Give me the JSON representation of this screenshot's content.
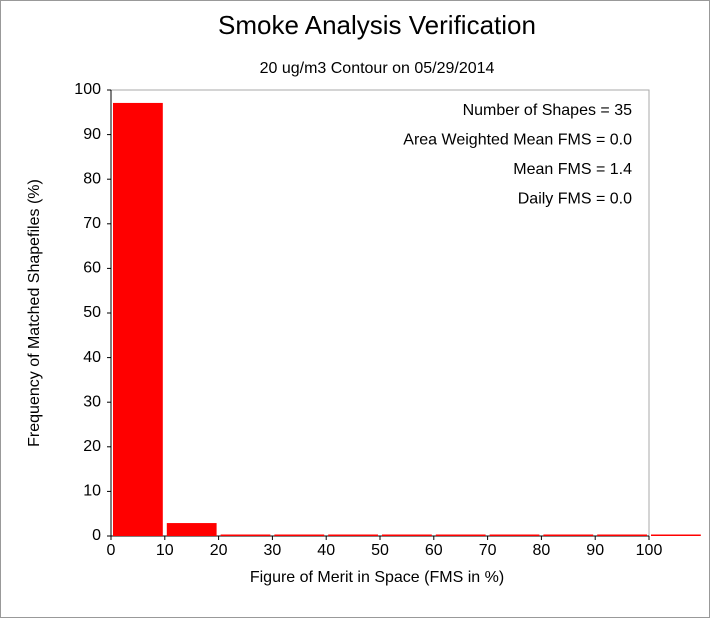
{
  "chart_data": {
    "type": "histogram",
    "title": "Smoke Analysis Verification",
    "subtitle": "20 ug/m3 Contour on 05/29/2014",
    "x_label": "Figure of Merit in Space (FMS in %)",
    "y_label": "Frequency of Matched Shapefiles (%)",
    "bins": [
      0,
      10,
      20,
      30,
      40,
      50,
      60,
      70,
      80,
      90,
      100,
      110
    ],
    "values": [
      97.1,
      2.9,
      0,
      0,
      0,
      0,
      0,
      0,
      0,
      0,
      0
    ],
    "color": "#ff0000",
    "xlim": [
      0,
      100
    ],
    "ylim": [
      0,
      100
    ],
    "xticks": [
      0,
      10,
      20,
      30,
      40,
      50,
      60,
      70,
      80,
      90,
      100
    ],
    "yticks": [
      0,
      10,
      20,
      30,
      40,
      50,
      60,
      70,
      80,
      90,
      100
    ],
    "annotations": [
      "Number of Shapes = 35",
      "Area Weighted Mean FMS = 0.0",
      "Mean FMS = 1.4",
      "Daily FMS = 0.0"
    ]
  }
}
